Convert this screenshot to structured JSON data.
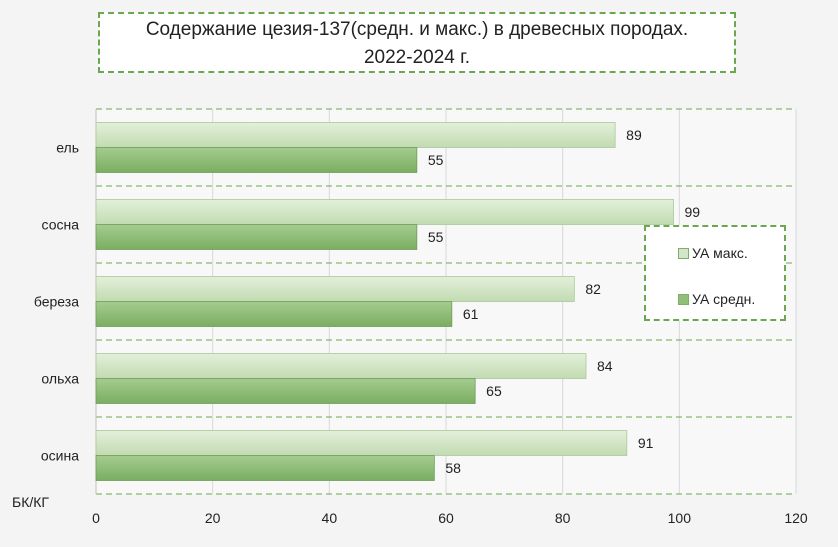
{
  "chart_data": {
    "type": "bar",
    "orientation": "horizontal",
    "title": [
      "Содержание цезия-137(средн. и макс.) в древесных породах.",
      "2022-2024 г."
    ],
    "categories": [
      "ель",
      "сосна",
      "береза",
      "ольха",
      "осина"
    ],
    "series": [
      {
        "name": "УА макс.",
        "values": [
          89,
          99,
          82,
          84,
          91
        ],
        "color": "#c9e0bb"
      },
      {
        "name": "УА средн.",
        "values": [
          55,
          55,
          61,
          65,
          58
        ],
        "color": "#8fbf78"
      }
    ],
    "x_ticks": [
      0,
      20,
      40,
      60,
      80,
      100,
      120
    ],
    "xlim": [
      0,
      120
    ],
    "unit_label": "БК/КГ",
    "grid": true,
    "legend_position": "right",
    "colors": {
      "border": "#6aa84f",
      "grid": "#d6d6d6",
      "background": "#f4f4f4"
    }
  }
}
